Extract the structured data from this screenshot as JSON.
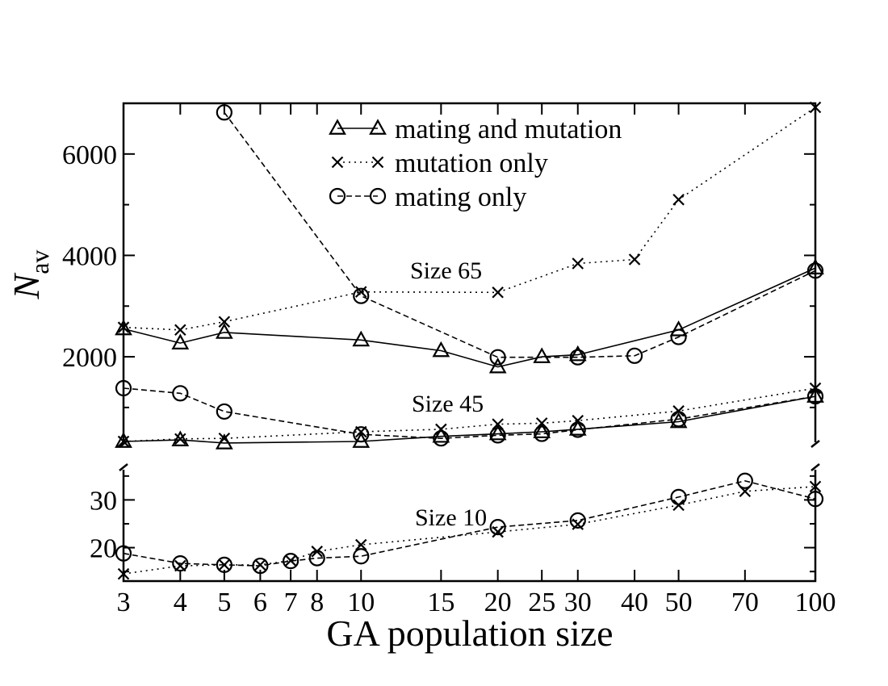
{
  "chart_data": {
    "type": "line",
    "xscale": "log",
    "xlabel": "GA population size",
    "ylabel_main": "N",
    "ylabel_sub": "av",
    "xticks": [
      3,
      4,
      5,
      6,
      7,
      8,
      10,
      15,
      20,
      25,
      30,
      40,
      50,
      70,
      100
    ],
    "xlim": [
      3,
      100
    ],
    "panels": [
      {
        "name": "upper",
        "ylim": [
          250,
          7000
        ],
        "yticks": [
          2000,
          4000,
          6000
        ],
        "yticklabels": [
          "2000",
          "4000",
          "6000"
        ]
      },
      {
        "name": "lower",
        "ylim": [
          13,
          37
        ],
        "yticks": [
          20,
          30
        ],
        "yticklabels": [
          "20",
          "30"
        ]
      }
    ],
    "legend": [
      {
        "label": "mating and mutation",
        "marker": "triangle",
        "dash": "solid"
      },
      {
        "label": "mutation only",
        "marker": "x",
        "dash": "dotted"
      },
      {
        "label": "mating only",
        "marker": "circle",
        "dash": "dashed"
      }
    ],
    "annotations": [
      "Size 65",
      "Size 45",
      "Size 10"
    ],
    "series": [
      {
        "name": "mating and mutation",
        "size": "Size 65",
        "panel": "upper",
        "marker": "triangle",
        "dash": "solid",
        "x": [
          3,
          4,
          5,
          10,
          15,
          20,
          25,
          30,
          50,
          100
        ],
        "y": [
          2550,
          2270,
          2480,
          2330,
          2120,
          1800,
          2000,
          2040,
          2530,
          3750
        ]
      },
      {
        "name": "mutation only",
        "size": "Size 65",
        "panel": "upper",
        "marker": "x",
        "dash": "dotted",
        "x": [
          3,
          4,
          5,
          10,
          20,
          30,
          40,
          50,
          100
        ],
        "y": [
          2580,
          2530,
          2690,
          3280,
          3270,
          3840,
          3920,
          5100,
          6920
        ]
      },
      {
        "name": "mating only",
        "size": "Size 65",
        "panel": "upper",
        "marker": "circle",
        "dash": "dashed",
        "x": [
          5,
          10,
          20,
          30,
          40,
          50,
          100
        ],
        "y": [
          6820,
          3200,
          1990,
          1990,
          2020,
          2390,
          3700
        ]
      },
      {
        "name": "mating and mutation",
        "size": "Size 45",
        "panel": "upper",
        "marker": "triangle",
        "dash": "solid",
        "x": [
          3,
          4,
          5,
          10,
          15,
          20,
          25,
          30,
          50,
          100
        ],
        "y": [
          330,
          360,
          300,
          330,
          430,
          480,
          520,
          570,
          720,
          1220
        ]
      },
      {
        "name": "mutation only",
        "size": "Size 45",
        "panel": "upper",
        "marker": "x",
        "dash": "dotted",
        "x": [
          3,
          4,
          5,
          10,
          15,
          20,
          25,
          30,
          50,
          100
        ],
        "y": [
          330,
          380,
          390,
          520,
          570,
          670,
          690,
          740,
          930,
          1380
        ]
      },
      {
        "name": "mating only",
        "size": "Size 45",
        "panel": "upper",
        "marker": "circle",
        "dash": "dashed",
        "x": [
          3,
          4,
          5,
          10,
          15,
          20,
          25,
          30,
          50,
          100
        ],
        "y": [
          1380,
          1280,
          920,
          470,
          390,
          450,
          480,
          560,
          770,
          1220
        ]
      },
      {
        "name": "mutation only",
        "size": "Size 10",
        "panel": "lower",
        "marker": "x",
        "dash": "dotted",
        "x": [
          3,
          4,
          5,
          6,
          7,
          8,
          10,
          20,
          30,
          50,
          70,
          100
        ],
        "y": [
          14.5,
          16.2,
          16.4,
          16.4,
          17.3,
          19.2,
          20.6,
          23.3,
          24.9,
          28.9,
          31.8,
          32.8
        ]
      },
      {
        "name": "mating only",
        "size": "Size 10",
        "panel": "lower",
        "marker": "circle",
        "dash": "dashed",
        "x": [
          3,
          4,
          5,
          6,
          7,
          8,
          10,
          20,
          30,
          50,
          70,
          100
        ],
        "y": [
          18.8,
          16.7,
          16.4,
          16.2,
          17.2,
          17.8,
          18.2,
          24.3,
          25.7,
          30.6,
          34.0,
          30.2
        ]
      }
    ]
  }
}
